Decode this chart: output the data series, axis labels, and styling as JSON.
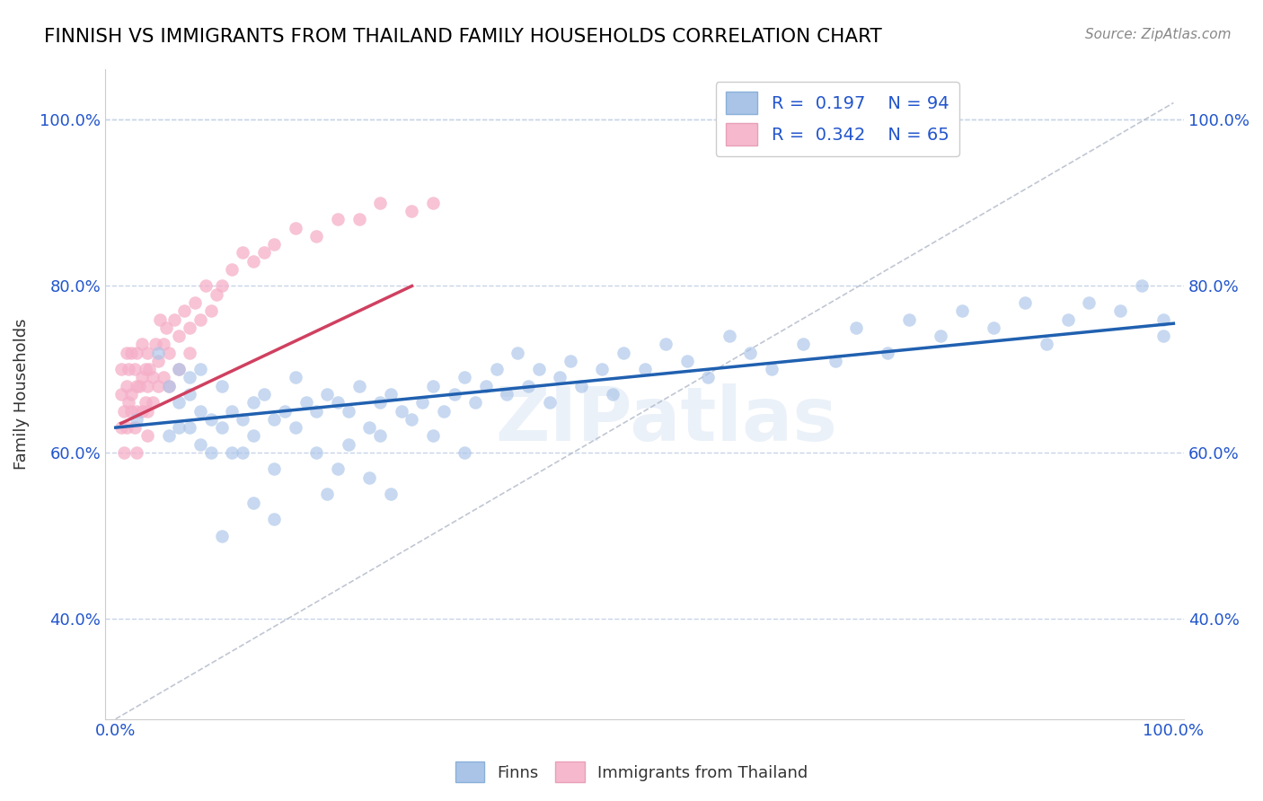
{
  "title": "FINNISH VS IMMIGRANTS FROM THAILAND FAMILY HOUSEHOLDS CORRELATION CHART",
  "source": "Source: ZipAtlas.com",
  "ylabel": "Family Households",
  "xlabel": "",
  "xlim": [
    -0.01,
    1.01
  ],
  "ylim": [
    0.28,
    1.06
  ],
  "yticks": [
    0.4,
    0.6,
    0.8,
    1.0
  ],
  "ytick_labels": [
    "40.0%",
    "60.0%",
    "80.0%",
    "100.0%"
  ],
  "xtick_labels": [
    "0.0%",
    "100.0%"
  ],
  "blue_scatter_color": "#aac4e8",
  "pink_scatter_color": "#f5afc8",
  "blue_line_color": "#2060b0",
  "pink_line_color": "#d04060",
  "gray_dash_color": "#b0b8c8",
  "text_color": "#2255cc",
  "legend_r1": "R =  0.197    N = 94",
  "legend_r2": "R =  0.342    N = 65",
  "watermark": "ZIPatlas",
  "blue_line_x0": 0.0,
  "blue_line_y0": 0.63,
  "blue_line_x1": 1.0,
  "blue_line_y1": 0.755,
  "pink_line_x0": 0.005,
  "pink_line_y0": 0.635,
  "pink_line_x1": 0.28,
  "pink_line_y1": 0.8,
  "finns_x": [
    0.02,
    0.04,
    0.05,
    0.05,
    0.06,
    0.06,
    0.06,
    0.07,
    0.07,
    0.07,
    0.08,
    0.08,
    0.08,
    0.09,
    0.09,
    0.1,
    0.1,
    0.11,
    0.11,
    0.12,
    0.12,
    0.13,
    0.13,
    0.14,
    0.15,
    0.15,
    0.16,
    0.17,
    0.17,
    0.18,
    0.19,
    0.19,
    0.2,
    0.21,
    0.22,
    0.22,
    0.23,
    0.24,
    0.25,
    0.25,
    0.26,
    0.27,
    0.28,
    0.29,
    0.3,
    0.31,
    0.32,
    0.33,
    0.34,
    0.35,
    0.36,
    0.37,
    0.38,
    0.39,
    0.4,
    0.41,
    0.42,
    0.43,
    0.44,
    0.46,
    0.47,
    0.48,
    0.5,
    0.52,
    0.54,
    0.56,
    0.58,
    0.6,
    0.62,
    0.65,
    0.68,
    0.7,
    0.73,
    0.75,
    0.78,
    0.8,
    0.83,
    0.86,
    0.88,
    0.9,
    0.92,
    0.95,
    0.97,
    0.99,
    0.2,
    0.21,
    0.24,
    0.26,
    0.1,
    0.13,
    0.15,
    0.3,
    0.33,
    0.99
  ],
  "finns_y": [
    0.64,
    0.72,
    0.68,
    0.62,
    0.66,
    0.7,
    0.63,
    0.69,
    0.63,
    0.67,
    0.65,
    0.61,
    0.7,
    0.64,
    0.6,
    0.63,
    0.68,
    0.65,
    0.6,
    0.64,
    0.6,
    0.66,
    0.62,
    0.67,
    0.64,
    0.58,
    0.65,
    0.69,
    0.63,
    0.66,
    0.65,
    0.6,
    0.67,
    0.66,
    0.65,
    0.61,
    0.68,
    0.63,
    0.66,
    0.62,
    0.67,
    0.65,
    0.64,
    0.66,
    0.68,
    0.65,
    0.67,
    0.69,
    0.66,
    0.68,
    0.7,
    0.67,
    0.72,
    0.68,
    0.7,
    0.66,
    0.69,
    0.71,
    0.68,
    0.7,
    0.67,
    0.72,
    0.7,
    0.73,
    0.71,
    0.69,
    0.74,
    0.72,
    0.7,
    0.73,
    0.71,
    0.75,
    0.72,
    0.76,
    0.74,
    0.77,
    0.75,
    0.78,
    0.73,
    0.76,
    0.78,
    0.77,
    0.8,
    0.76,
    0.55,
    0.58,
    0.57,
    0.55,
    0.5,
    0.54,
    0.52,
    0.62,
    0.6,
    0.74
  ],
  "thai_x": [
    0.005,
    0.005,
    0.005,
    0.008,
    0.008,
    0.01,
    0.01,
    0.01,
    0.012,
    0.012,
    0.015,
    0.015,
    0.015,
    0.018,
    0.018,
    0.02,
    0.02,
    0.02,
    0.02,
    0.022,
    0.025,
    0.025,
    0.025,
    0.028,
    0.028,
    0.03,
    0.03,
    0.03,
    0.03,
    0.032,
    0.035,
    0.035,
    0.038,
    0.04,
    0.04,
    0.042,
    0.045,
    0.045,
    0.048,
    0.05,
    0.05,
    0.055,
    0.06,
    0.06,
    0.065,
    0.07,
    0.07,
    0.075,
    0.08,
    0.085,
    0.09,
    0.095,
    0.1,
    0.11,
    0.12,
    0.13,
    0.14,
    0.15,
    0.17,
    0.19,
    0.21,
    0.23,
    0.25,
    0.28,
    0.3
  ],
  "thai_y": [
    0.67,
    0.63,
    0.7,
    0.65,
    0.6,
    0.68,
    0.63,
    0.72,
    0.66,
    0.7,
    0.72,
    0.67,
    0.65,
    0.7,
    0.63,
    0.72,
    0.68,
    0.65,
    0.6,
    0.68,
    0.73,
    0.69,
    0.65,
    0.7,
    0.66,
    0.72,
    0.68,
    0.65,
    0.62,
    0.7,
    0.69,
    0.66,
    0.73,
    0.71,
    0.68,
    0.76,
    0.73,
    0.69,
    0.75,
    0.72,
    0.68,
    0.76,
    0.74,
    0.7,
    0.77,
    0.75,
    0.72,
    0.78,
    0.76,
    0.8,
    0.77,
    0.79,
    0.8,
    0.82,
    0.84,
    0.83,
    0.84,
    0.85,
    0.87,
    0.86,
    0.88,
    0.88,
    0.9,
    0.89,
    0.9
  ]
}
